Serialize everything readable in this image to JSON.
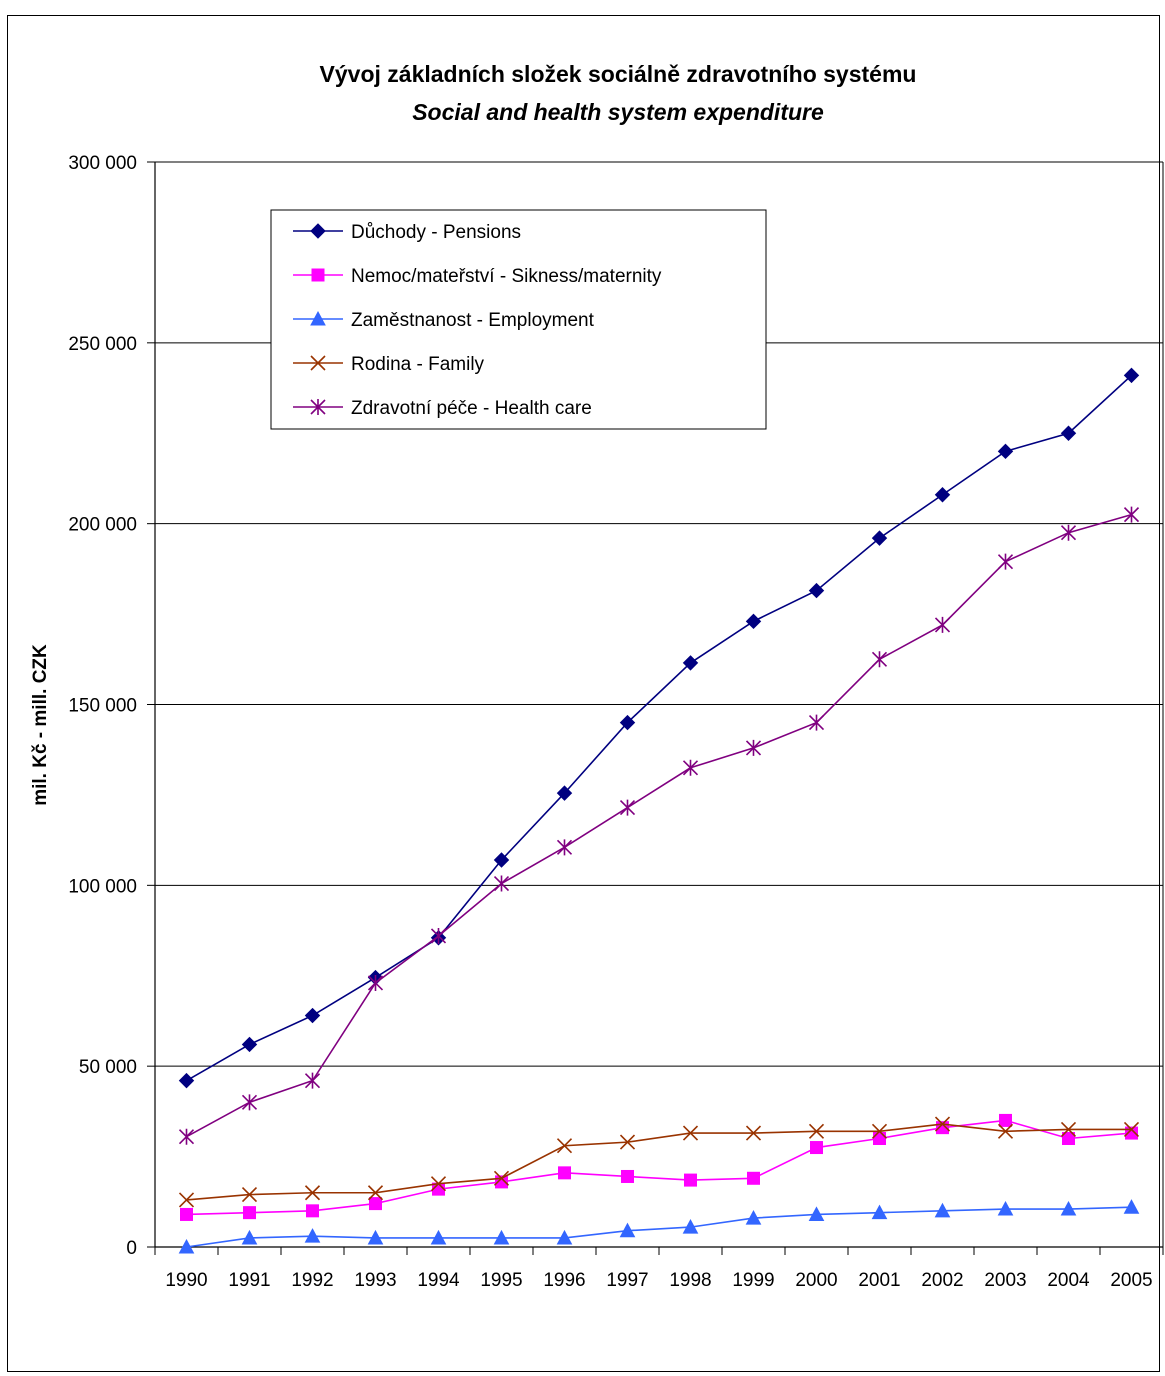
{
  "chart_data": {
    "type": "line",
    "title": "Vývoj základních složek sociálně zdravotního systému",
    "subtitle": "Social and health system expenditure",
    "xlabel": "",
    "ylabel": "mil. Kč - mill. CZK",
    "ylim": [
      0,
      300000
    ],
    "yticks": [
      0,
      50000,
      100000,
      150000,
      200000,
      250000,
      300000
    ],
    "ytick_labels": [
      "0",
      "50 000",
      "100 000",
      "150 000",
      "200 000",
      "250 000",
      "300 000"
    ],
    "grid": "horizontal",
    "legend_position": "top-left",
    "categories": [
      "1990",
      "1991",
      "1992",
      "1993",
      "1994",
      "1995",
      "1996",
      "1997",
      "1998",
      "1999",
      "2000",
      "2001",
      "2002",
      "2003",
      "2004",
      "2005"
    ],
    "series": [
      {
        "name": "Důchody - Pensions",
        "color": "#000080",
        "marker": "diamond",
        "values": [
          46000,
          56000,
          64000,
          74500,
          85500,
          107000,
          125500,
          145000,
          161500,
          173000,
          181500,
          196000,
          208000,
          220000,
          225000,
          241000
        ]
      },
      {
        "name": "Nemoc/mateřství - Sikness/maternity",
        "color": "#ff00ff",
        "marker": "square",
        "values": [
          9000,
          9500,
          10000,
          12000,
          16000,
          18000,
          20500,
          19500,
          18500,
          19000,
          27500,
          30000,
          33000,
          35000,
          30000,
          31500
        ]
      },
      {
        "name": "Zaměstnanost - Employment",
        "color": "#3366ff",
        "marker": "triangle",
        "values": [
          0,
          2500,
          3000,
          2500,
          2500,
          2500,
          2500,
          4500,
          5500,
          8000,
          9000,
          9500,
          10000,
          10500,
          10500,
          11000
        ]
      },
      {
        "name": "Rodina - Family",
        "color": "#993300",
        "marker": "x",
        "values": [
          13000,
          14500,
          15000,
          15000,
          17500,
          19000,
          28000,
          29000,
          31500,
          31500,
          32000,
          32000,
          34000,
          32000,
          32500,
          32500
        ]
      },
      {
        "name": "Zdravotní péče - Health care",
        "color": "#800080",
        "marker": "asterisk",
        "values": [
          30500,
          40000,
          46000,
          73000,
          86000,
          100500,
          110500,
          121500,
          132500,
          138000,
          145000,
          162500,
          172000,
          189500,
          197500,
          202500
        ]
      }
    ]
  }
}
